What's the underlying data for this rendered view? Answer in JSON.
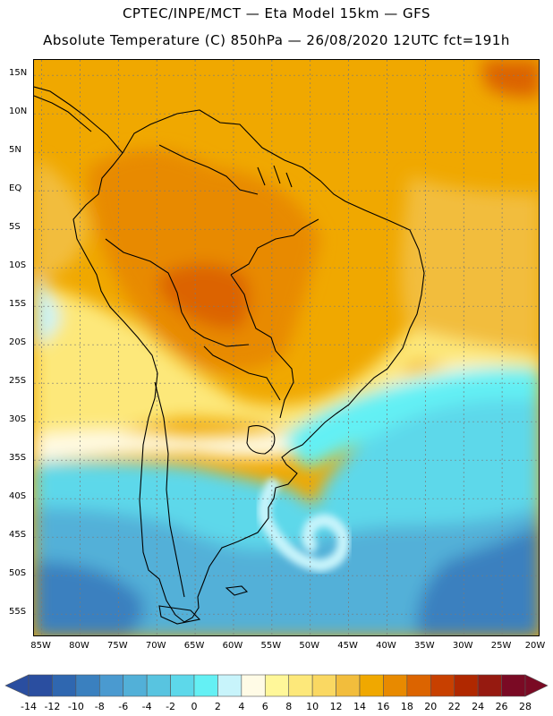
{
  "header": {
    "line1": "CPTEC/INPE/MCT —  Eta Model 15km — GFS",
    "line2": "Absolute Temperature (C) 850hPa — 26/08/2020 12UTC fct=191h"
  },
  "map": {
    "model": "Eta Model 15km",
    "variable": "Absolute Temperature",
    "units": "C",
    "level": "850hPa",
    "lat_range": [
      -58,
      17
    ],
    "lon_range": [
      -86,
      -20
    ],
    "lat_labels": [
      {
        "text": "15N",
        "value": 15
      },
      {
        "text": "10N",
        "value": 10
      },
      {
        "text": "5N",
        "value": 5
      },
      {
        "text": "EQ",
        "value": 0
      },
      {
        "text": "5S",
        "value": -5
      },
      {
        "text": "10S",
        "value": -10
      },
      {
        "text": "15S",
        "value": -15
      },
      {
        "text": "20S",
        "value": -20
      },
      {
        "text": "25S",
        "value": -25
      },
      {
        "text": "30S",
        "value": -30
      },
      {
        "text": "35S",
        "value": -35
      },
      {
        "text": "40S",
        "value": -40
      },
      {
        "text": "45S",
        "value": -45
      },
      {
        "text": "50S",
        "value": -50
      },
      {
        "text": "55S",
        "value": -55
      }
    ],
    "lon_labels": [
      {
        "text": "85W",
        "value": -85
      },
      {
        "text": "80W",
        "value": -80
      },
      {
        "text": "75W",
        "value": -75
      },
      {
        "text": "70W",
        "value": -70
      },
      {
        "text": "65W",
        "value": -65
      },
      {
        "text": "60W",
        "value": -60
      },
      {
        "text": "55W",
        "value": -55
      },
      {
        "text": "50W",
        "value": -50
      },
      {
        "text": "45W",
        "value": -45
      },
      {
        "text": "40W",
        "value": -40
      },
      {
        "text": "35W",
        "value": -35
      },
      {
        "text": "30W",
        "value": -30
      },
      {
        "text": "25W",
        "value": -25
      },
      {
        "text": "20W",
        "value": -20
      }
    ]
  },
  "colorbar": {
    "under_color": "#2a4ea0",
    "over_color": "#7a0a24",
    "colors": [
      "#2a4ea0",
      "#2f67b0",
      "#3a80bf",
      "#4a9ad0",
      "#52b0d8",
      "#58c4e0",
      "#5dd8ea",
      "#64f0f4",
      "#c8f4fb",
      "#fffbe6",
      "#fff799",
      "#fde87a",
      "#fad862",
      "#f2bd3c",
      "#f0a800",
      "#e88a00",
      "#dc6400",
      "#c84000",
      "#b02800",
      "#961a10",
      "#7a0a24"
    ],
    "labels": [
      "-14",
      "-12",
      "-10",
      "-8",
      "-6",
      "-4",
      "-2",
      "0",
      "2",
      "4",
      "6",
      "8",
      "10",
      "12",
      "14",
      "16",
      "18",
      "20",
      "22",
      "24",
      "26",
      "28"
    ]
  }
}
